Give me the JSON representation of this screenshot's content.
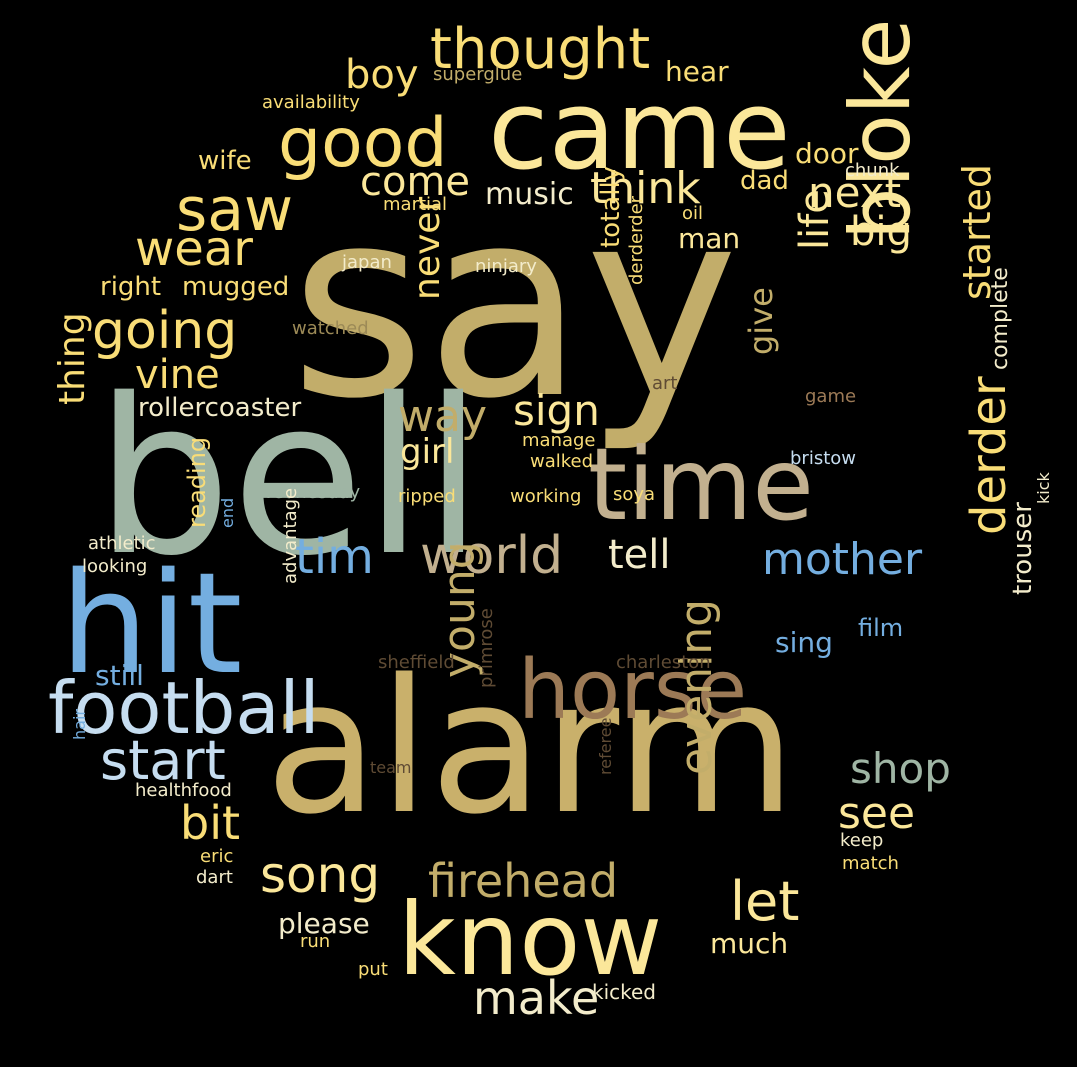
{
  "palette": {
    "background": "#000000",
    "gold": "#c9b06b",
    "khaki": "#c2ad6a",
    "sage": "#9fb5a4",
    "sky_blue": "#74aee0",
    "pale_blue": "#c6ddf0",
    "bright_yellow": "#f9dd77",
    "pale_yellow": "#fbe79a",
    "cream": "#f3eccb",
    "tan": "#c2b08f",
    "brown": "#9c7a56",
    "olive": "#9c8a57",
    "dark_brown": "#5f4b34"
  },
  "words": [
    {
      "text": "say",
      "color": "#c2ad6a"
    },
    {
      "text": "bell",
      "color": "#9fb5a4"
    },
    {
      "text": "bloke",
      "color": "#fbe79a"
    },
    {
      "text": "alarm",
      "color": "#c9b06b"
    },
    {
      "text": "came",
      "color": "#fbe79a"
    },
    {
      "text": "hit",
      "color": "#74aee0"
    },
    {
      "text": "time",
      "color": "#c2b08f"
    },
    {
      "text": "know",
      "color": "#fbe79a"
    },
    {
      "text": "horse",
      "color": "#9c7a56"
    },
    {
      "text": "football",
      "color": "#c6ddf0"
    },
    {
      "text": "good",
      "color": "#f9dd77"
    },
    {
      "text": "thought",
      "color": "#f9dd77"
    },
    {
      "text": "saw",
      "color": "#f9dd77"
    },
    {
      "text": "going",
      "color": "#f9dd77"
    },
    {
      "text": "wear",
      "color": "#f9dd77"
    },
    {
      "text": "world",
      "color": "#c2b08f"
    },
    {
      "text": "derder",
      "color": "#f9dd77"
    },
    {
      "text": "start",
      "color": "#c6ddf0"
    },
    {
      "text": "song",
      "color": "#fbe79a"
    },
    {
      "text": "firehead",
      "color": "#c2ad6a"
    },
    {
      "text": "let",
      "color": "#fbe79a"
    },
    {
      "text": "make",
      "color": "#f3eccb"
    },
    {
      "text": "tim",
      "color": "#74aee0"
    },
    {
      "text": "tell",
      "color": "#f3eccb"
    },
    {
      "text": "mother",
      "color": "#74aee0"
    },
    {
      "text": "shop",
      "color": "#9fb5a4"
    },
    {
      "text": "see",
      "color": "#fbe79a"
    },
    {
      "text": "bit",
      "color": "#f9dd77"
    },
    {
      "text": "way",
      "color": "#c2ad6a"
    },
    {
      "text": "sign",
      "color": "#fbe79a"
    },
    {
      "text": "vine",
      "color": "#f9dd77"
    },
    {
      "text": "next",
      "color": "#fbe79a"
    },
    {
      "text": "think",
      "color": "#fbe79a"
    },
    {
      "text": "come",
      "color": "#fbe79a"
    },
    {
      "text": "boy",
      "color": "#f9dd77"
    },
    {
      "text": "big",
      "color": "#fbe79a"
    },
    {
      "text": "life",
      "color": "#fbe79a"
    },
    {
      "text": "started",
      "color": "#f9dd77"
    },
    {
      "text": "never",
      "color": "#f9dd77"
    },
    {
      "text": "give",
      "color": "#c2ad6a"
    },
    {
      "text": "young",
      "color": "#c2ad6a"
    },
    {
      "text": "evening",
      "color": "#c2ad6a"
    },
    {
      "text": "thing",
      "color": "#f9dd77"
    },
    {
      "text": "girl",
      "color": "#fbe79a"
    },
    {
      "text": "music",
      "color": "#f3eccb"
    },
    {
      "text": "hear",
      "color": "#f9dd77"
    },
    {
      "text": "door",
      "color": "#f9dd77"
    },
    {
      "text": "dad",
      "color": "#f9dd77"
    },
    {
      "text": "man",
      "color": "#fbe79a"
    },
    {
      "text": "mugged",
      "color": "#f9dd77"
    },
    {
      "text": "right",
      "color": "#f9dd77"
    },
    {
      "text": "rollercoaster",
      "color": "#f3eccb"
    },
    {
      "text": "wife",
      "color": "#f9dd77"
    },
    {
      "text": "still",
      "color": "#74aee0"
    },
    {
      "text": "please",
      "color": "#f3eccb"
    },
    {
      "text": "much",
      "color": "#fbe79a"
    },
    {
      "text": "sing",
      "color": "#74aee0"
    },
    {
      "text": "film",
      "color": "#74aee0"
    },
    {
      "text": "trouser",
      "color": "#f3eccb"
    },
    {
      "text": "complete",
      "color": "#f3eccb"
    },
    {
      "text": "totally",
      "color": "#f9dd77"
    },
    {
      "text": "reading",
      "color": "#f9dd77"
    },
    {
      "text": "kicked",
      "color": "#f3eccb"
    },
    {
      "text": "superglue",
      "color": "#c2ad6a"
    },
    {
      "text": "availability",
      "color": "#f9dd77"
    },
    {
      "text": "martial",
      "color": "#f9dd77"
    },
    {
      "text": "oil",
      "color": "#f9dd77"
    },
    {
      "text": "chunk",
      "color": "#f3eccb"
    },
    {
      "text": "japan",
      "color": "#f3eccb"
    },
    {
      "text": "ninjary",
      "color": "#f3eccb"
    },
    {
      "text": "derderder",
      "color": "#f9dd77"
    },
    {
      "text": "watched",
      "color": "#9c8a57"
    },
    {
      "text": "art",
      "color": "#5f4b34"
    },
    {
      "text": "game",
      "color": "#9c7a56"
    },
    {
      "text": "bristow",
      "color": "#c6ddf0"
    },
    {
      "text": "manage",
      "color": "#f9dd77"
    },
    {
      "text": "walked",
      "color": "#f9dd77"
    },
    {
      "text": "wednesday",
      "color": "#9fb5a4"
    },
    {
      "text": "ripped",
      "color": "#f9dd77"
    },
    {
      "text": "working",
      "color": "#f9dd77"
    },
    {
      "text": "soya",
      "color": "#f9dd77"
    },
    {
      "text": "athletic",
      "color": "#f3eccb"
    },
    {
      "text": "end",
      "color": "#74aee0"
    },
    {
      "text": "looking",
      "color": "#f3eccb"
    },
    {
      "text": "advantage",
      "color": "#f3eccb"
    },
    {
      "text": "kick",
      "color": "#f3eccb"
    },
    {
      "text": "sheffield",
      "color": "#5f4b34"
    },
    {
      "text": "charleston",
      "color": "#5f4b34"
    },
    {
      "text": "hair",
      "color": "#74aee0"
    },
    {
      "text": "healthfood",
      "color": "#f3eccb"
    },
    {
      "text": "team",
      "color": "#5f4b34"
    },
    {
      "text": "primrose",
      "color": "#5f4b34"
    },
    {
      "text": "referee",
      "color": "#5f4b34"
    },
    {
      "text": "keep",
      "color": "#f3eccb"
    },
    {
      "text": "match",
      "color": "#f9dd77"
    },
    {
      "text": "eric",
      "color": "#f9dd77"
    },
    {
      "text": "dart",
      "color": "#f3eccb"
    },
    {
      "text": "run",
      "color": "#f9dd77"
    },
    {
      "text": "put",
      "color": "#f9dd77"
    }
  ]
}
